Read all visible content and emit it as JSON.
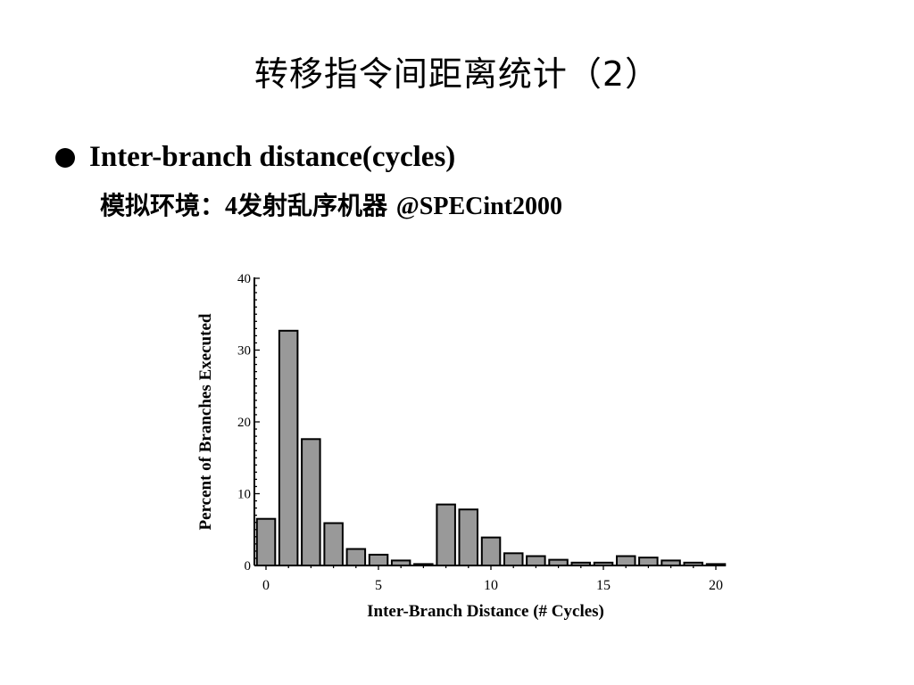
{
  "slide": {
    "title": "转移指令间距离统计（2）",
    "bullet": "Inter-branch distance(cycles)",
    "sub_prefix": "模拟环境：",
    "sub_latin": "4",
    "sub_middle": "发射乱序机器 ",
    "sub_suffix": "@SPECint2000"
  },
  "colors": {
    "bar_fill": "#999999",
    "bar_stroke": "#000000",
    "text": "#000000"
  },
  "chart_data": {
    "type": "bar",
    "xlabel": "Inter-Branch Distance (# Cycles)",
    "ylabel": "Percent of Branches Executed",
    "x": [
      0,
      1,
      2,
      3,
      4,
      5,
      6,
      7,
      8,
      9,
      10,
      11,
      12,
      13,
      14,
      15,
      16,
      17,
      18,
      19,
      20
    ],
    "values": [
      6.5,
      32.7,
      17.6,
      5.9,
      2.3,
      1.5,
      0.7,
      0.2,
      8.5,
      7.8,
      3.9,
      1.7,
      1.3,
      0.8,
      0.4,
      0.4,
      1.3,
      1.1,
      0.7,
      0.4,
      0.2
    ],
    "xlim": [
      0,
      20
    ],
    "ylim": [
      0,
      40
    ],
    "xticks": [
      0,
      5,
      10,
      15,
      20
    ],
    "xtick_labels": [
      "0",
      "5",
      "10",
      "15",
      "20"
    ],
    "yticks": [
      0,
      10,
      20,
      30,
      40
    ],
    "ytick_labels": [
      "0",
      "10",
      "20",
      "30",
      "40"
    ],
    "grid": false,
    "legend": "none"
  }
}
